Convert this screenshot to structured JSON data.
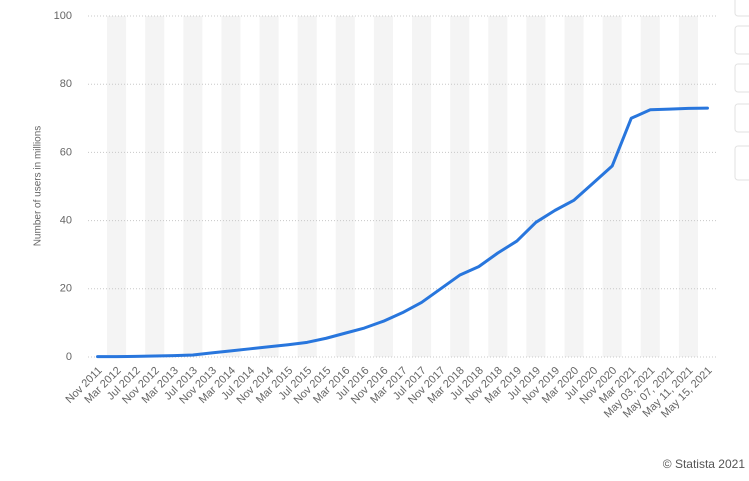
{
  "chart_data": {
    "type": "line",
    "y_label": "Number of users in millions",
    "source": "© Statista 2021",
    "categories": [
      "Nov 2011",
      "Mar 2012",
      "Jul 2012",
      "Nov 2012",
      "Mar 2013",
      "Jul 2013",
      "Nov 2013",
      "Mar 2014",
      "Jul 2014",
      "Nov 2014",
      "Mar 2015",
      "Jul 2015",
      "Nov 2015",
      "Mar 2016",
      "Jul 2016",
      "Nov 2016",
      "Mar 2017",
      "Jul 2017",
      "Nov 2017",
      "Mar 2018",
      "Jul 2018",
      "Nov 2018",
      "Mar 2019",
      "Jul 2019",
      "Nov 2019",
      "Mar 2020",
      "Jul 2020",
      "Nov 2020",
      "Mar 2021",
      "May 03, 2021",
      "May 07, 2021",
      "May 11, 2021",
      "May 15, 2021"
    ],
    "values": [
      0.1,
      0.1,
      0.2,
      0.3,
      0.4,
      0.6,
      1.2,
      1.8,
      2.4,
      3,
      3.6,
      4.3,
      5.5,
      7,
      8.5,
      10.5,
      13,
      16,
      20,
      24,
      26.5,
      30.5,
      34,
      39.5,
      43,
      46,
      51,
      56,
      70,
      72.5,
      72.7,
      72.9,
      73
    ],
    "color": "#2876dd",
    "ylim": [
      0,
      100
    ],
    "yticks": [
      0,
      20,
      40,
      60,
      80,
      100
    ],
    "grid": true
  }
}
